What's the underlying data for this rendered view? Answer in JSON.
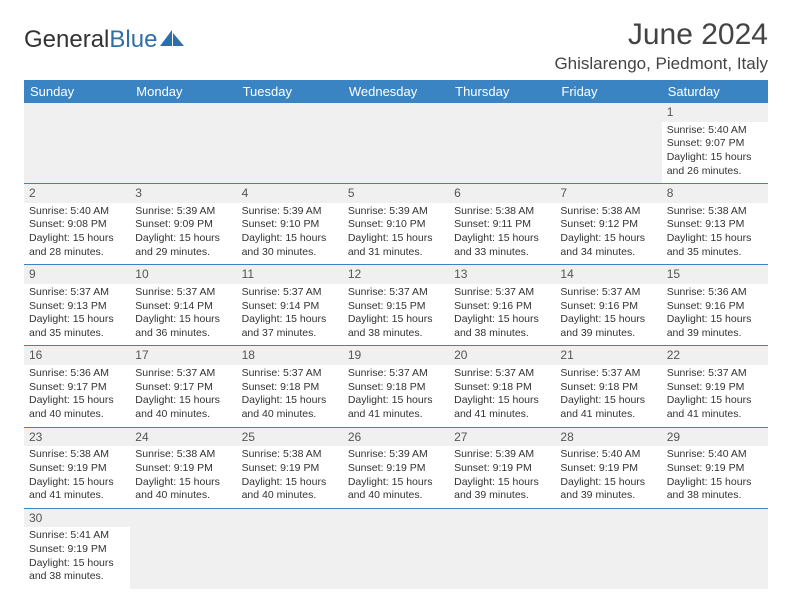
{
  "brand": {
    "part1": "General",
    "part2": "Blue"
  },
  "title": "June 2024",
  "location": "Ghislarengo, Piedmont, Italy",
  "colors": {
    "header_bg": "#3b84c4",
    "header_text": "#ffffff",
    "cell_border": "#3b84c4",
    "blank_bg": "#f0f0f0",
    "logo_blue": "#2f6fa7"
  },
  "weekdays": [
    "Sunday",
    "Monday",
    "Tuesday",
    "Wednesday",
    "Thursday",
    "Friday",
    "Saturday"
  ],
  "weeks": [
    [
      null,
      null,
      null,
      null,
      null,
      null,
      {
        "d": "1",
        "sr": "Sunrise: 5:40 AM",
        "ss": "Sunset: 9:07 PM",
        "dl1": "Daylight: 15 hours",
        "dl2": "and 26 minutes."
      }
    ],
    [
      {
        "d": "2",
        "sr": "Sunrise: 5:40 AM",
        "ss": "Sunset: 9:08 PM",
        "dl1": "Daylight: 15 hours",
        "dl2": "and 28 minutes."
      },
      {
        "d": "3",
        "sr": "Sunrise: 5:39 AM",
        "ss": "Sunset: 9:09 PM",
        "dl1": "Daylight: 15 hours",
        "dl2": "and 29 minutes."
      },
      {
        "d": "4",
        "sr": "Sunrise: 5:39 AM",
        "ss": "Sunset: 9:10 PM",
        "dl1": "Daylight: 15 hours",
        "dl2": "and 30 minutes."
      },
      {
        "d": "5",
        "sr": "Sunrise: 5:39 AM",
        "ss": "Sunset: 9:10 PM",
        "dl1": "Daylight: 15 hours",
        "dl2": "and 31 minutes."
      },
      {
        "d": "6",
        "sr": "Sunrise: 5:38 AM",
        "ss": "Sunset: 9:11 PM",
        "dl1": "Daylight: 15 hours",
        "dl2": "and 33 minutes."
      },
      {
        "d": "7",
        "sr": "Sunrise: 5:38 AM",
        "ss": "Sunset: 9:12 PM",
        "dl1": "Daylight: 15 hours",
        "dl2": "and 34 minutes."
      },
      {
        "d": "8",
        "sr": "Sunrise: 5:38 AM",
        "ss": "Sunset: 9:13 PM",
        "dl1": "Daylight: 15 hours",
        "dl2": "and 35 minutes."
      }
    ],
    [
      {
        "d": "9",
        "sr": "Sunrise: 5:37 AM",
        "ss": "Sunset: 9:13 PM",
        "dl1": "Daylight: 15 hours",
        "dl2": "and 35 minutes."
      },
      {
        "d": "10",
        "sr": "Sunrise: 5:37 AM",
        "ss": "Sunset: 9:14 PM",
        "dl1": "Daylight: 15 hours",
        "dl2": "and 36 minutes."
      },
      {
        "d": "11",
        "sr": "Sunrise: 5:37 AM",
        "ss": "Sunset: 9:14 PM",
        "dl1": "Daylight: 15 hours",
        "dl2": "and 37 minutes."
      },
      {
        "d": "12",
        "sr": "Sunrise: 5:37 AM",
        "ss": "Sunset: 9:15 PM",
        "dl1": "Daylight: 15 hours",
        "dl2": "and 38 minutes."
      },
      {
        "d": "13",
        "sr": "Sunrise: 5:37 AM",
        "ss": "Sunset: 9:16 PM",
        "dl1": "Daylight: 15 hours",
        "dl2": "and 38 minutes."
      },
      {
        "d": "14",
        "sr": "Sunrise: 5:37 AM",
        "ss": "Sunset: 9:16 PM",
        "dl1": "Daylight: 15 hours",
        "dl2": "and 39 minutes."
      },
      {
        "d": "15",
        "sr": "Sunrise: 5:36 AM",
        "ss": "Sunset: 9:16 PM",
        "dl1": "Daylight: 15 hours",
        "dl2": "and 39 minutes."
      }
    ],
    [
      {
        "d": "16",
        "sr": "Sunrise: 5:36 AM",
        "ss": "Sunset: 9:17 PM",
        "dl1": "Daylight: 15 hours",
        "dl2": "and 40 minutes."
      },
      {
        "d": "17",
        "sr": "Sunrise: 5:37 AM",
        "ss": "Sunset: 9:17 PM",
        "dl1": "Daylight: 15 hours",
        "dl2": "and 40 minutes."
      },
      {
        "d": "18",
        "sr": "Sunrise: 5:37 AM",
        "ss": "Sunset: 9:18 PM",
        "dl1": "Daylight: 15 hours",
        "dl2": "and 40 minutes."
      },
      {
        "d": "19",
        "sr": "Sunrise: 5:37 AM",
        "ss": "Sunset: 9:18 PM",
        "dl1": "Daylight: 15 hours",
        "dl2": "and 41 minutes."
      },
      {
        "d": "20",
        "sr": "Sunrise: 5:37 AM",
        "ss": "Sunset: 9:18 PM",
        "dl1": "Daylight: 15 hours",
        "dl2": "and 41 minutes."
      },
      {
        "d": "21",
        "sr": "Sunrise: 5:37 AM",
        "ss": "Sunset: 9:18 PM",
        "dl1": "Daylight: 15 hours",
        "dl2": "and 41 minutes."
      },
      {
        "d": "22",
        "sr": "Sunrise: 5:37 AM",
        "ss": "Sunset: 9:19 PM",
        "dl1": "Daylight: 15 hours",
        "dl2": "and 41 minutes."
      }
    ],
    [
      {
        "d": "23",
        "sr": "Sunrise: 5:38 AM",
        "ss": "Sunset: 9:19 PM",
        "dl1": "Daylight: 15 hours",
        "dl2": "and 41 minutes."
      },
      {
        "d": "24",
        "sr": "Sunrise: 5:38 AM",
        "ss": "Sunset: 9:19 PM",
        "dl1": "Daylight: 15 hours",
        "dl2": "and 40 minutes."
      },
      {
        "d": "25",
        "sr": "Sunrise: 5:38 AM",
        "ss": "Sunset: 9:19 PM",
        "dl1": "Daylight: 15 hours",
        "dl2": "and 40 minutes."
      },
      {
        "d": "26",
        "sr": "Sunrise: 5:39 AM",
        "ss": "Sunset: 9:19 PM",
        "dl1": "Daylight: 15 hours",
        "dl2": "and 40 minutes."
      },
      {
        "d": "27",
        "sr": "Sunrise: 5:39 AM",
        "ss": "Sunset: 9:19 PM",
        "dl1": "Daylight: 15 hours",
        "dl2": "and 39 minutes."
      },
      {
        "d": "28",
        "sr": "Sunrise: 5:40 AM",
        "ss": "Sunset: 9:19 PM",
        "dl1": "Daylight: 15 hours",
        "dl2": "and 39 minutes."
      },
      {
        "d": "29",
        "sr": "Sunrise: 5:40 AM",
        "ss": "Sunset: 9:19 PM",
        "dl1": "Daylight: 15 hours",
        "dl2": "and 38 minutes."
      }
    ],
    [
      {
        "d": "30",
        "sr": "Sunrise: 5:41 AM",
        "ss": "Sunset: 9:19 PM",
        "dl1": "Daylight: 15 hours",
        "dl2": "and 38 minutes."
      },
      null,
      null,
      null,
      null,
      null,
      null
    ]
  ]
}
